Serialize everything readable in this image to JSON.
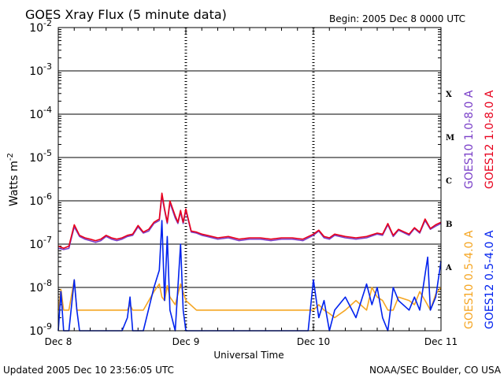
{
  "chart_data": {
    "type": "line",
    "title": "GOES Xray Flux (5 minute data)",
    "begin_label": "Begin:  2005 Dec 8 0000 UTC",
    "xlabel": "Universal Time",
    "ylabel": "Watts m",
    "ylabel_superscript": "-2",
    "y_scale": "log",
    "ylim": [
      1e-09,
      0.01
    ],
    "xlim": [
      0,
      72
    ],
    "x_unit": "hours since 2005 Dec 8 0000 UTC",
    "y_ticks": [
      {
        "value": 0.01,
        "base": "10",
        "exp": "-2"
      },
      {
        "value": 0.001,
        "base": "10",
        "exp": "-3"
      },
      {
        "value": 0.0001,
        "base": "10",
        "exp": "-4"
      },
      {
        "value": 1e-05,
        "base": "10",
        "exp": "-5"
      },
      {
        "value": 1e-06,
        "base": "10",
        "exp": "-6"
      },
      {
        "value": 1e-07,
        "base": "10",
        "exp": "-7"
      },
      {
        "value": 1e-08,
        "base": "10",
        "exp": "-8"
      },
      {
        "value": 1e-09,
        "base": "10",
        "exp": "-9"
      }
    ],
    "x_ticks": [
      {
        "hour": 0,
        "label": "Dec 8"
      },
      {
        "hour": 24,
        "label": "Dec 9"
      },
      {
        "hour": 48,
        "label": "Dec 10"
      },
      {
        "hour": 72,
        "label": "Dec 11"
      }
    ],
    "flare_classes": [
      {
        "label": "X",
        "value": 0.0003
      },
      {
        "label": "M",
        "value": 3e-05
      },
      {
        "label": "C",
        "value": 3e-06
      },
      {
        "label": "B",
        "value": 3e-07
      },
      {
        "label": "A",
        "value": 3e-08
      }
    ],
    "grid": true,
    "legend_position": "right",
    "series": [
      {
        "name": "GOES10 1.0-8.0 A",
        "color": "#7a3fc8",
        "x": [
          0,
          1,
          2,
          3,
          4,
          5,
          6,
          7,
          8,
          9,
          10,
          11,
          12,
          13,
          14,
          15,
          16,
          17,
          18,
          19,
          19.5,
          20,
          20.5,
          21,
          22,
          22.5,
          23,
          23.5,
          24,
          25,
          26,
          27,
          28,
          30,
          32,
          34,
          36,
          38,
          40,
          42,
          44,
          46,
          48,
          49,
          50,
          51,
          52,
          54,
          56,
          58,
          60,
          61,
          62,
          63,
          64,
          66,
          67,
          68,
          69,
          70,
          71,
          72
        ],
        "y": [
          8e-08,
          7.5e-08,
          8e-08,
          2.5e-07,
          1.5e-07,
          1.3e-07,
          1.2e-07,
          1.1e-07,
          1.2e-07,
          1.5e-07,
          1.3e-07,
          1.2e-07,
          1.3e-07,
          1.5e-07,
          1.6e-07,
          2.5e-07,
          1.8e-07,
          2e-07,
          3e-07,
          3.5e-07,
          1.3e-06,
          6e-07,
          3e-07,
          9e-07,
          4e-07,
          3e-07,
          5.5e-07,
          3e-07,
          6e-07,
          1.9e-07,
          1.8e-07,
          1.6e-07,
          1.5e-07,
          1.3e-07,
          1.4e-07,
          1.2e-07,
          1.3e-07,
          1.3e-07,
          1.2e-07,
          1.3e-07,
          1.3e-07,
          1.2e-07,
          1.6e-07,
          2e-07,
          1.4e-07,
          1.3e-07,
          1.6e-07,
          1.4e-07,
          1.3e-07,
          1.4e-07,
          1.7e-07,
          1.6e-07,
          2.8e-07,
          1.5e-07,
          2.1e-07,
          1.6e-07,
          2.3e-07,
          1.8e-07,
          3.5e-07,
          2.2e-07,
          2.6e-07,
          3e-07
        ]
      },
      {
        "name": "GOES12 1.0-8.0 A",
        "color": "#e8001c",
        "x": [
          0,
          1,
          2,
          3,
          4,
          5,
          6,
          7,
          8,
          9,
          10,
          11,
          12,
          13,
          14,
          15,
          16,
          17,
          18,
          19,
          19.5,
          20,
          20.5,
          21,
          22,
          22.5,
          23,
          23.5,
          24,
          25,
          26,
          27,
          28,
          30,
          32,
          34,
          36,
          38,
          40,
          42,
          44,
          46,
          48,
          49,
          50,
          51,
          52,
          54,
          56,
          58,
          60,
          61,
          62,
          63,
          64,
          66,
          67,
          68,
          69,
          70,
          71,
          72
        ],
        "y": [
          9e-08,
          8e-08,
          9e-08,
          2.8e-07,
          1.6e-07,
          1.4e-07,
          1.3e-07,
          1.2e-07,
          1.3e-07,
          1.6e-07,
          1.4e-07,
          1.3e-07,
          1.4e-07,
          1.6e-07,
          1.7e-07,
          2.7e-07,
          1.9e-07,
          2.2e-07,
          3.2e-07,
          3.8e-07,
          1.5e-06,
          6.5e-07,
          3.2e-07,
          1e-06,
          4.5e-07,
          3.2e-07,
          6e-07,
          3.2e-07,
          6.5e-07,
          2e-07,
          1.9e-07,
          1.7e-07,
          1.6e-07,
          1.4e-07,
          1.5e-07,
          1.3e-07,
          1.4e-07,
          1.4e-07,
          1.3e-07,
          1.4e-07,
          1.4e-07,
          1.3e-07,
          1.7e-07,
          2.1e-07,
          1.5e-07,
          1.4e-07,
          1.7e-07,
          1.5e-07,
          1.4e-07,
          1.5e-07,
          1.8e-07,
          1.7e-07,
          3e-07,
          1.6e-07,
          2.2e-07,
          1.7e-07,
          2.4e-07,
          1.9e-07,
          3.8e-07,
          2.3e-07,
          2.8e-07,
          3.2e-07
        ]
      },
      {
        "name": "GOES10 0.5-4.0 A",
        "color": "#f5a623",
        "x": [
          0,
          0.5,
          1,
          2,
          3,
          3.5,
          4,
          5,
          6,
          8,
          10,
          12,
          13,
          13.5,
          14,
          16,
          18,
          19,
          19.5,
          20,
          20.5,
          21,
          22,
          23,
          24,
          26,
          28,
          30,
          32,
          34,
          36,
          38,
          40,
          42,
          44,
          46,
          47,
          48,
          49,
          50,
          51,
          52,
          54,
          56,
          58,
          59,
          60,
          61,
          62,
          63,
          64,
          66,
          67,
          68,
          69,
          70,
          71,
          72
        ],
        "y": [
          3e-09,
          9e-09,
          3e-09,
          3e-09,
          1.5e-08,
          3e-09,
          3e-09,
          3e-09,
          3e-09,
          3e-09,
          3e-09,
          3e-09,
          3e-09,
          4e-09,
          3e-09,
          3e-09,
          8e-09,
          1.2e-08,
          6e-09,
          5e-09,
          1.1e-08,
          6e-09,
          4e-09,
          1.2e-08,
          5e-09,
          3e-09,
          3e-09,
          3e-09,
          3e-09,
          3e-09,
          3e-09,
          3e-09,
          3e-09,
          3e-09,
          3e-09,
          3e-09,
          3e-09,
          3e-09,
          4e-09,
          3e-09,
          2.5e-09,
          2e-09,
          3e-09,
          5e-09,
          3e-09,
          1e-08,
          6e-09,
          5e-09,
          3e-09,
          3e-09,
          6e-09,
          5e-09,
          4e-09,
          8e-09,
          5e-09,
          3e-09,
          7e-09,
          1e-08
        ]
      },
      {
        "name": "GOES12 0.5-4.0 A",
        "color": "#0022ee",
        "x": [
          0,
          0.5,
          1,
          2,
          3,
          3.5,
          4,
          5,
          6,
          8,
          10,
          12,
          13,
          13.5,
          14,
          16,
          18,
          19,
          19.5,
          20,
          20.5,
          21,
          22,
          23,
          23.5,
          24,
          26,
          28,
          30,
          32,
          34,
          36,
          38,
          40,
          42,
          44,
          46,
          47,
          48,
          49,
          50,
          51,
          52,
          54,
          56,
          58,
          59,
          60,
          61,
          62,
          63,
          64,
          66,
          67,
          68,
          69,
          69.5,
          70,
          71,
          72
        ],
        "y": [
          1e-09,
          8e-09,
          1e-09,
          1e-09,
          1.5e-08,
          3e-09,
          1e-09,
          1e-09,
          1e-09,
          1e-09,
          1e-09,
          1e-09,
          2e-09,
          6e-09,
          1e-09,
          1e-09,
          1e-08,
          2.5e-08,
          3.5e-07,
          5e-09,
          1.5e-07,
          3e-09,
          1e-09,
          1e-07,
          3e-09,
          1e-09,
          1e-09,
          1e-09,
          1e-09,
          1e-09,
          1e-09,
          1e-09,
          1e-09,
          1e-09,
          1e-09,
          1e-09,
          1e-09,
          1e-09,
          1.5e-08,
          2e-09,
          5e-09,
          1e-09,
          3e-09,
          6e-09,
          2e-09,
          1.2e-08,
          4e-09,
          1e-08,
          2e-09,
          1e-09,
          1e-08,
          5e-09,
          3e-09,
          6e-09,
          3e-09,
          2e-08,
          5e-08,
          3e-09,
          6e-09,
          4e-08
        ]
      }
    ]
  },
  "footer": {
    "updated": "Updated 2005 Dec 10 23:56:05 UTC",
    "source": "NOAA/SEC Boulder, CO USA"
  }
}
